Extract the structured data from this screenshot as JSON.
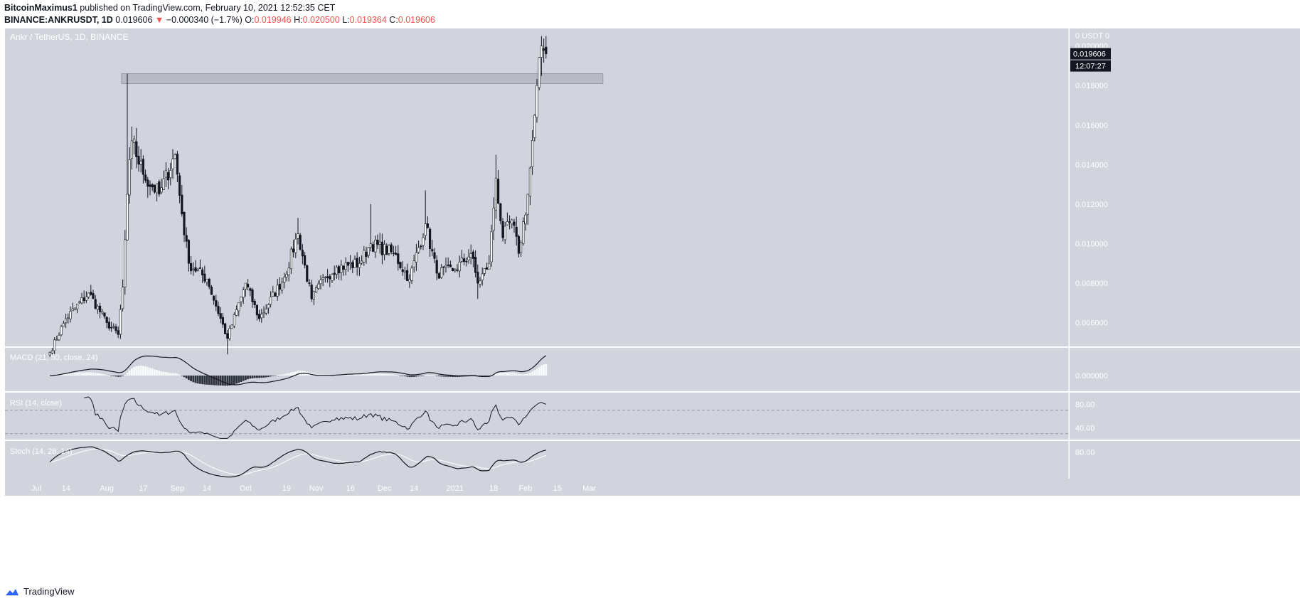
{
  "header": {
    "author": "BitcoinMaximus1",
    "published_text": "published on TradingView.com, February 10, 2021 12:52:35 CET",
    "symbol": "BINANCE:ANKRUSDT, 1D",
    "last": "0.019606",
    "change_arrow": "▼",
    "change": "−0.000340 (−1.7%)",
    "o_label": "O:",
    "o_value": "0.019946",
    "h_label": "H:",
    "h_value": "0.020500",
    "l_label": "L:",
    "l_value": "0.019364",
    "c_label": "C:",
    "c_value": "0.019606"
  },
  "footer": {
    "brand": "TradingView"
  },
  "colors": {
    "pane_bg": "#d1d4dc",
    "up_body": "#ffffff",
    "down_body": "#131722",
    "wick": "#131722",
    "macd_hist_up": "#ffffff",
    "macd_hist_down": "#131722",
    "signal_line": "#ffffff",
    "zone_fill": "#b8bbc5"
  },
  "chart_data": [
    {
      "type": "candlestick",
      "title": "Ankr / TetherUS, 1D, BINANCE",
      "y_unit_label": "0 USDT 0",
      "y_range": [
        0.0048,
        0.0206
      ],
      "y_ticks": [
        "0.020000",
        "0.018000",
        "0.016000",
        "0.014000",
        "0.012000",
        "0.010000",
        "0.008000",
        "0.006000"
      ],
      "last_price_label": "0.019606",
      "countdown_label": "12:07:27",
      "x_ticks": [
        "Jul",
        "14",
        "Aug",
        "17",
        "Sep",
        "14",
        "Oct",
        "19",
        "Nov",
        "16",
        "Dec",
        "14",
        "2021",
        "18",
        "Feb",
        "15",
        "Mar"
      ],
      "resistance_zone": {
        "from": 0.0181,
        "to": 0.0186,
        "start_date": "2020-08-10",
        "end_date": "2021-03-07"
      },
      "key_points": [
        {
          "date": "2020-07-07",
          "close": 0.0045
        },
        {
          "date": "2020-07-14",
          "close": 0.0062
        },
        {
          "date": "2020-07-24",
          "close": 0.0075
        },
        {
          "date": "2020-08-01",
          "close": 0.006
        },
        {
          "date": "2020-08-06",
          "close": 0.0054
        },
        {
          "date": "2020-08-08",
          "close": 0.0078
        },
        {
          "date": "2020-08-10",
          "close": 0.0125,
          "high": 0.0186
        },
        {
          "date": "2020-08-12",
          "close": 0.0152
        },
        {
          "date": "2020-08-17",
          "close": 0.0135
        },
        {
          "date": "2020-08-24",
          "close": 0.0125
        },
        {
          "date": "2020-08-31",
          "close": 0.0145
        },
        {
          "date": "2020-09-03",
          "close": 0.0115
        },
        {
          "date": "2020-09-06",
          "close": 0.009
        },
        {
          "date": "2020-09-14",
          "close": 0.0082
        },
        {
          "date": "2020-09-23",
          "close": 0.0052,
          "low": 0.0044
        },
        {
          "date": "2020-10-01",
          "close": 0.008
        },
        {
          "date": "2020-10-07",
          "close": 0.0062
        },
        {
          "date": "2020-10-18",
          "close": 0.0083
        },
        {
          "date": "2020-10-24",
          "close": 0.0105,
          "high": 0.0113
        },
        {
          "date": "2020-10-30",
          "close": 0.0072
        },
        {
          "date": "2020-11-05",
          "close": 0.0083
        },
        {
          "date": "2020-11-10",
          "close": 0.0088
        },
        {
          "date": "2020-11-20",
          "close": 0.009
        },
        {
          "date": "2020-11-25",
          "close": 0.01,
          "high": 0.012
        },
        {
          "date": "2020-12-05",
          "close": 0.0095
        },
        {
          "date": "2020-12-12",
          "close": 0.0082
        },
        {
          "date": "2020-12-19",
          "close": 0.011,
          "high": 0.0127
        },
        {
          "date": "2020-12-24",
          "close": 0.0085
        },
        {
          "date": "2021-01-01",
          "close": 0.0087
        },
        {
          "date": "2021-01-08",
          "close": 0.0095
        },
        {
          "date": "2021-01-11",
          "close": 0.008,
          "low": 0.0072
        },
        {
          "date": "2021-01-16",
          "close": 0.009
        },
        {
          "date": "2021-01-19",
          "close": 0.0133,
          "high": 0.0145
        },
        {
          "date": "2021-01-22",
          "close": 0.0103
        },
        {
          "date": "2021-01-26",
          "close": 0.0112
        },
        {
          "date": "2021-01-29",
          "close": 0.0095
        },
        {
          "date": "2021-02-02",
          "close": 0.0125
        },
        {
          "date": "2021-02-05",
          "close": 0.0165
        },
        {
          "date": "2021-02-08",
          "close": 0.02,
          "high": 0.0205
        },
        {
          "date": "2021-02-10",
          "close": 0.019606,
          "open": 0.019946,
          "high": 0.0205,
          "low": 0.019364
        }
      ]
    },
    {
      "type": "line",
      "title": "MACD (21, 50, close, 24)",
      "y_ticks": [
        "0.000000"
      ],
      "series": [
        {
          "name": "MACD",
          "values": "derived from price"
        },
        {
          "name": "Histogram",
          "values": "derived from price"
        }
      ]
    },
    {
      "type": "line",
      "title": "RSI (14, close)",
      "y_range": [
        20,
        100
      ],
      "y_ticks": [
        "80.00",
        "40.00"
      ],
      "bands": [
        70,
        30
      ]
    },
    {
      "type": "line",
      "title": "Stoch (14, 28, 14)",
      "y_range": [
        0,
        100
      ],
      "y_ticks": [
        "80.00"
      ]
    }
  ]
}
